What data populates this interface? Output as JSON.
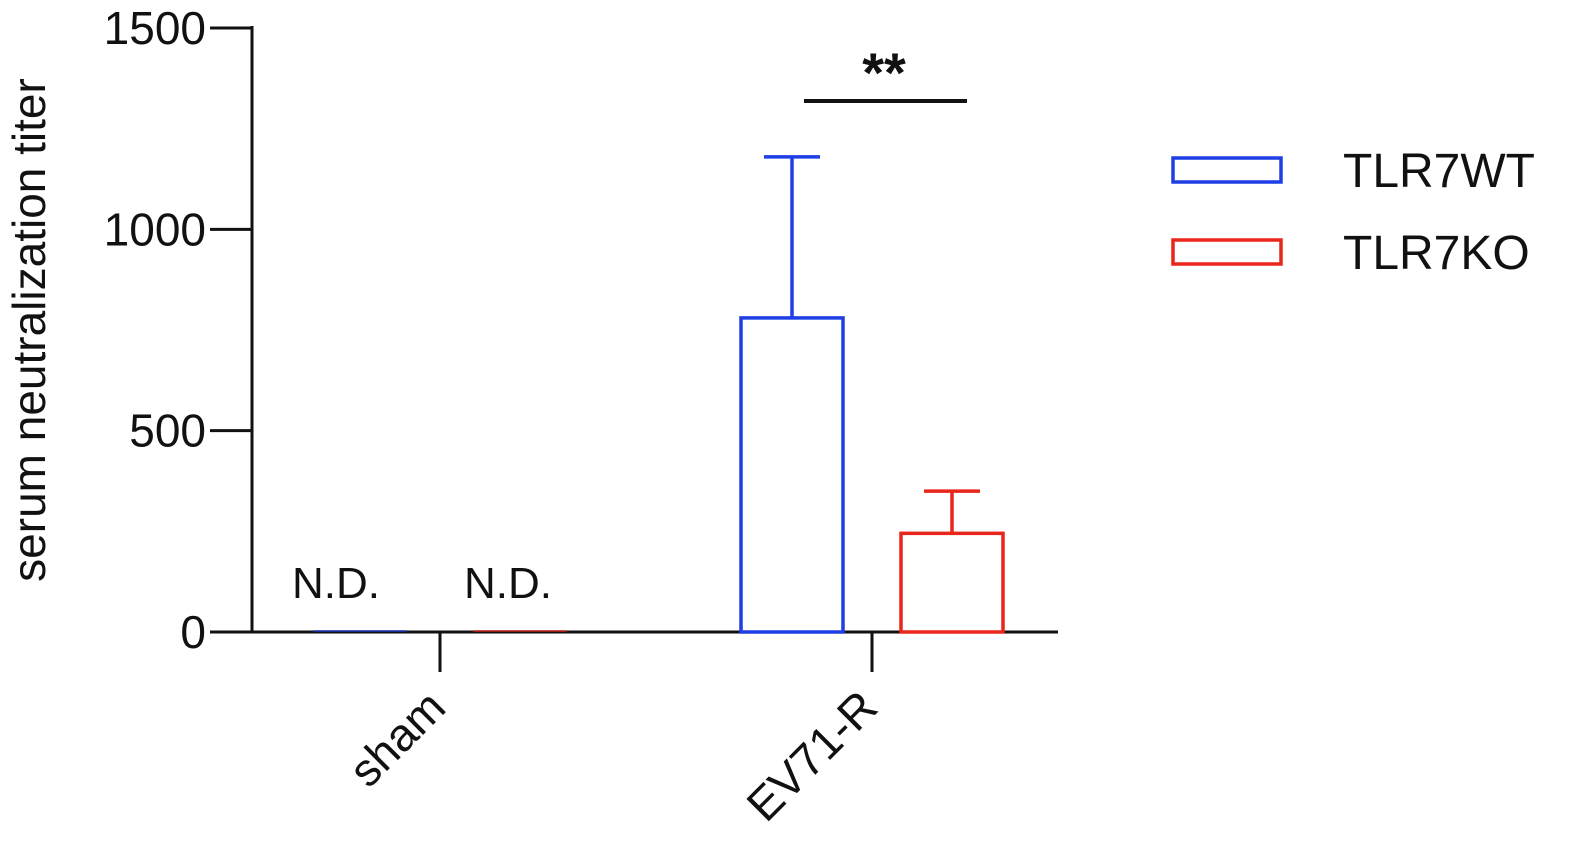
{
  "chart_data": {
    "type": "bar",
    "title": "",
    "ylabel": "serum neutralization titer",
    "xlabel": "",
    "ylim": [
      0,
      1500
    ],
    "yticks": [
      0,
      500,
      1000,
      1500
    ],
    "categories": [
      "sham",
      "EV71-R"
    ],
    "series": [
      {
        "name": "TLR7WT",
        "color": "#1f3fe6",
        "values": [
          0,
          780
        ],
        "errors": [
          0,
          400
        ],
        "annotations": [
          "N.D.",
          ""
        ]
      },
      {
        "name": "TLR7KO",
        "color": "#e8261b",
        "values": [
          0,
          245
        ],
        "errors": [
          0,
          105
        ],
        "annotations": [
          "N.D.",
          ""
        ]
      }
    ],
    "significance": {
      "category": "EV71-R",
      "label": "**"
    },
    "legend": {
      "position": "top-right"
    }
  }
}
